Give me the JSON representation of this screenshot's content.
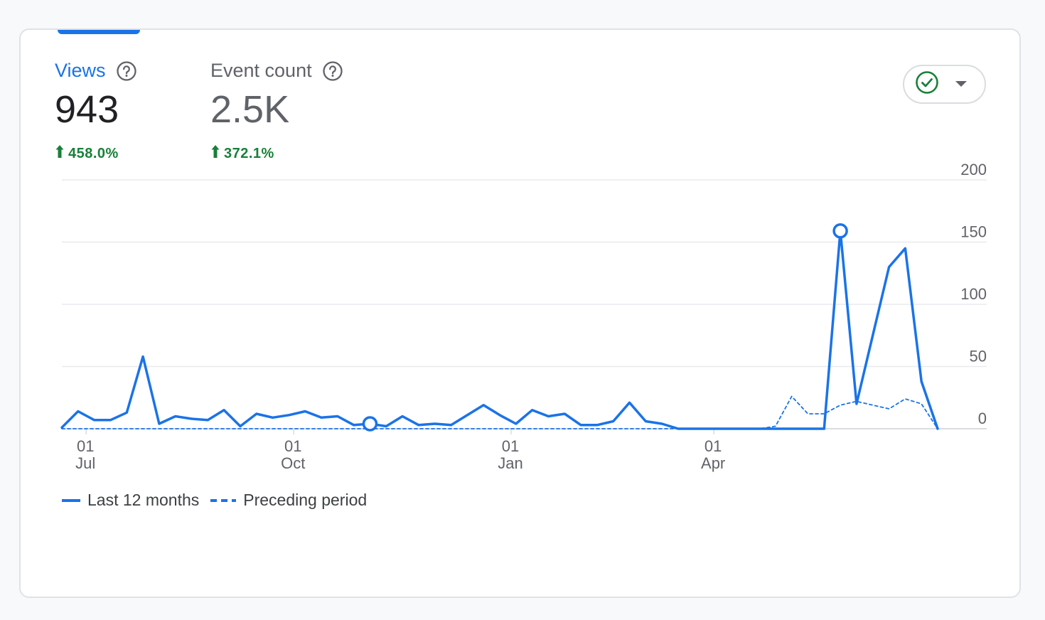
{
  "metrics": [
    {
      "label": "Views",
      "value": "943",
      "change": "458.0%",
      "active": true
    },
    {
      "label": "Event count",
      "value": "2.5K",
      "change": "372.1%",
      "active": false
    }
  ],
  "colors": {
    "accent": "#1a73e8",
    "positive": "#188038",
    "grid": "#e8eaed",
    "axis_text": "#5f6368"
  },
  "icons": {
    "help": "help-circle-icon",
    "compare": "check-circle-icon",
    "dropdown": "arrow-drop-down-icon",
    "up": "arrow-upward-icon"
  },
  "legend": {
    "current": "Last 12 months",
    "previous": "Preceding period"
  },
  "chart_data": {
    "type": "line",
    "y_ticks": [
      0,
      50,
      100,
      150,
      200
    ],
    "ylim": [
      0,
      200
    ],
    "x_ticks": [
      {
        "day": "01",
        "month": "Jul"
      },
      {
        "day": "01",
        "month": "Oct"
      },
      {
        "day": "01",
        "month": "Jan"
      },
      {
        "day": "01",
        "month": "Apr"
      }
    ],
    "x_tick_index": [
      1.5,
      14.3,
      27.7,
      40.2
    ],
    "grid": true,
    "legend_position": "bottom-left",
    "series": [
      {
        "name": "Last 12 months",
        "style": "solid",
        "values": [
          1,
          14,
          7,
          7,
          13,
          58,
          4,
          10,
          8,
          7,
          15,
          2,
          12,
          9,
          11,
          14,
          9,
          10,
          3,
          4,
          2,
          10,
          3,
          4,
          3,
          11,
          19,
          11,
          4,
          15,
          10,
          12,
          3,
          3,
          6,
          21,
          6,
          4,
          0,
          0,
          0,
          0,
          0,
          0,
          0,
          0,
          0,
          0,
          159,
          20,
          75,
          130,
          145,
          38,
          0
        ]
      },
      {
        "name": "Preceding period",
        "style": "dashed",
        "values": [
          0,
          0,
          0,
          0,
          0,
          0,
          0,
          0,
          0,
          0,
          0,
          0,
          0,
          0,
          0,
          0,
          0,
          0,
          0,
          0,
          0,
          0,
          0,
          0,
          0,
          0,
          0,
          0,
          0,
          0,
          0,
          0,
          0,
          0,
          0,
          0,
          0,
          0,
          0,
          0,
          0,
          0,
          0,
          0,
          2,
          26,
          12,
          12,
          19,
          22,
          19,
          16,
          24,
          20,
          0
        ]
      }
    ],
    "highlighted_points": [
      {
        "series": 0,
        "index": 48
      },
      {
        "series": 0,
        "index": 19
      }
    ]
  }
}
